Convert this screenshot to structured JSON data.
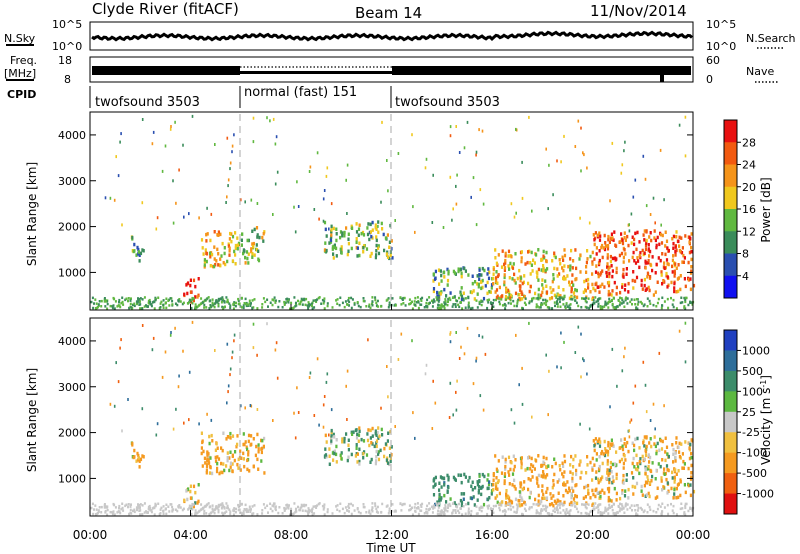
{
  "header": {
    "station": "Clyde River (fitACF)",
    "beam": "Beam 14",
    "date": "11/Nov/2014"
  },
  "panels": {
    "nsky": {
      "left_label": "N.Sky",
      "left_ticks": [
        "10^5",
        "10^0"
      ],
      "right_ticks": [
        "10^5",
        "10^0"
      ],
      "right_label": "N.Search"
    },
    "freq": {
      "left_label_1": "Freq.",
      "left_label_2": "[MHz]",
      "left_ticks": [
        "18",
        "8"
      ],
      "right_ticks": [
        "60",
        "0"
      ],
      "right_label": "Nave"
    },
    "cpid": {
      "label": "CPID",
      "modes": [
        "twofsound 3503",
        "normal (fast) 151",
        "twofsound 3503"
      ]
    }
  },
  "axes": {
    "ylabel": "Slant Range [km]",
    "yticks": [
      "1000",
      "2000",
      "3000",
      "4000"
    ],
    "xlabel": "Time UT",
    "xticks": [
      "00:00",
      "04:00",
      "08:00",
      "12:00",
      "16:00",
      "20:00",
      "00:00"
    ]
  },
  "colorbars": {
    "power": {
      "label": "Power [dB]",
      "ticks": [
        "28",
        "24",
        "20",
        "16",
        "12",
        "8",
        "4"
      ],
      "colors": [
        "#e81010",
        "#f25a10",
        "#f5941a",
        "#f0c81e",
        "#60b840",
        "#3a8c5a",
        "#2a4fb0",
        "#1010f0"
      ]
    },
    "velocity": {
      "label": "Velocity [m s",
      "label_sup": "-1",
      "label_end": "]",
      "ticks": [
        "1000",
        "500",
        "100",
        "25",
        "-25",
        "-100",
        "-500",
        "-1000"
      ],
      "colors": [
        "#2040c0",
        "#2e6e9a",
        "#3c8c6a",
        "#5cb840",
        "#c8c8c8",
        "#f0c040",
        "#f59a20",
        "#f06010",
        "#e01010"
      ]
    }
  },
  "chart_data": {
    "type": "heatmap",
    "x_range_hours": [
      0,
      24
    ],
    "y_range_km": [
      180,
      4500
    ],
    "mode_change_hours": [
      6,
      12
    ],
    "power_echo_regions": [
      {
        "t": [
          1.6,
          2.1
        ],
        "r": [
          1200,
          1800
        ],
        "db": 10
      },
      {
        "t": [
          3.7,
          4.3
        ],
        "r": [
          300,
          900
        ],
        "db": 26
      },
      {
        "t": [
          4.4,
          5.9
        ],
        "r": [
          1100,
          1900
        ],
        "db": 18
      },
      {
        "t": [
          6.0,
          6.9
        ],
        "r": [
          1200,
          2000
        ],
        "db": 14
      },
      {
        "t": [
          9.3,
          12.0
        ],
        "r": [
          1300,
          2100
        ],
        "db": 12
      },
      {
        "t": [
          13.6,
          16.0
        ],
        "r": [
          400,
          1100
        ],
        "db": 10
      },
      {
        "t": [
          16.0,
          20.0
        ],
        "r": [
          400,
          1500
        ],
        "db": 18
      },
      {
        "t": [
          20.0,
          24.0
        ],
        "r": [
          500,
          1900
        ],
        "db": 24
      }
    ],
    "velocity_echo_regions": [
      {
        "t": [
          1.6,
          2.1
        ],
        "r": [
          1200,
          1800
        ],
        "v": -200
      },
      {
        "t": [
          3.7,
          4.3
        ],
        "r": [
          300,
          900
        ],
        "v": -100
      },
      {
        "t": [
          4.4,
          6.9
        ],
        "r": [
          1100,
          2000
        ],
        "v": -150
      },
      {
        "t": [
          9.3,
          12.0
        ],
        "r": [
          1300,
          2100
        ],
        "v": 100
      },
      {
        "t": [
          13.6,
          16.0
        ],
        "r": [
          400,
          1100
        ],
        "v": 300
      },
      {
        "t": [
          16.0,
          20.0
        ],
        "r": [
          400,
          1500
        ],
        "v": -200
      },
      {
        "t": [
          20.0,
          24.0
        ],
        "r": [
          500,
          1900
        ],
        "v": -100
      }
    ]
  }
}
